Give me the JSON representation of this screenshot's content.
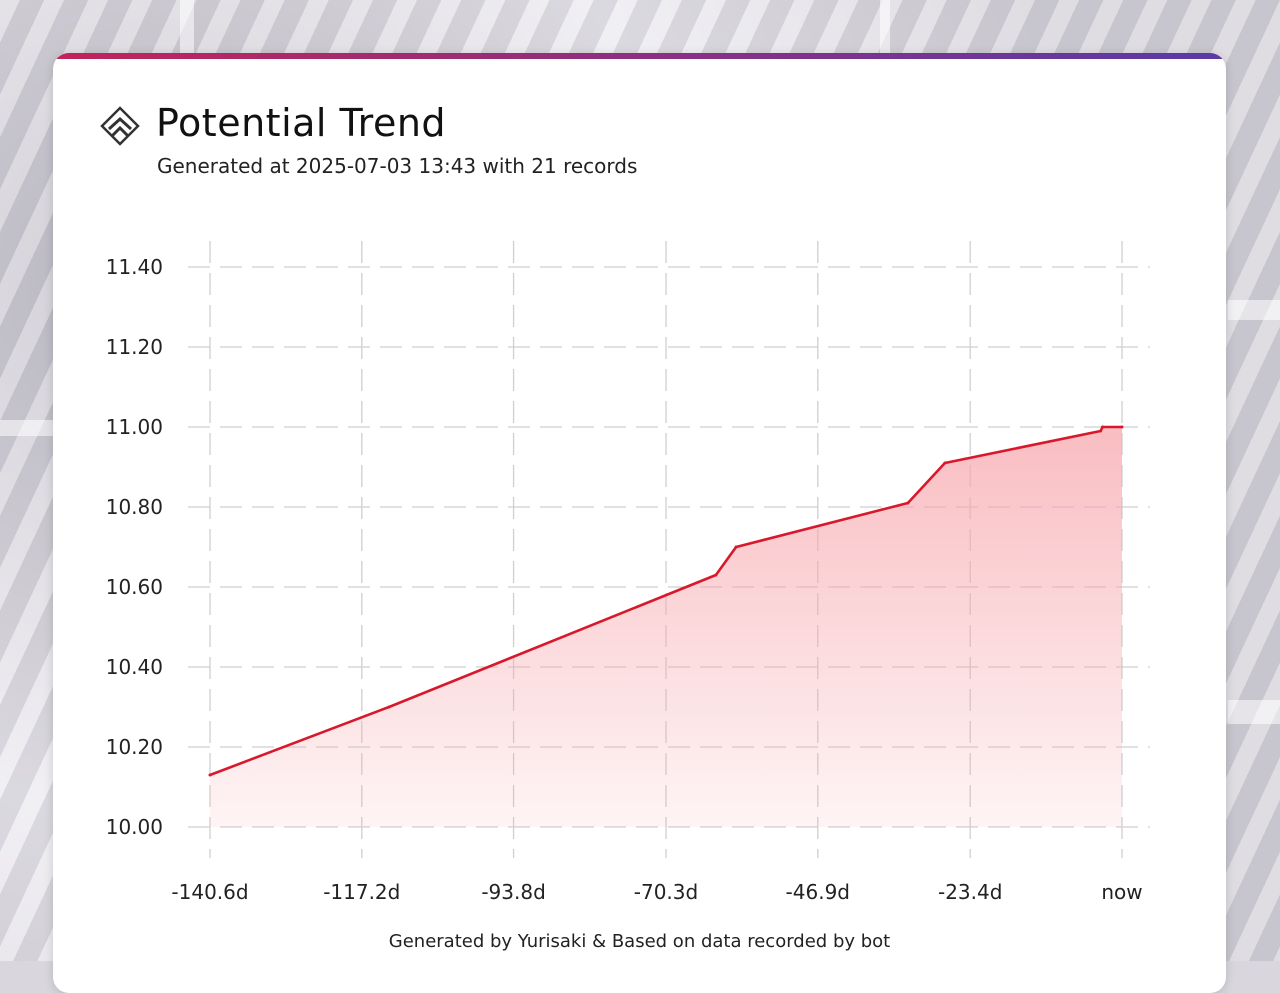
{
  "header": {
    "icon": "chevrons-up-icon",
    "title": "Potential Trend",
    "subtitle": "Generated at 2025-07-03 13:43 with 21 records"
  },
  "footer": {
    "text": "Generated by Yurisaki & Based on data recorded by bot"
  },
  "colors": {
    "accent_start": "#c0245a",
    "accent_end": "#5a3aa8",
    "line": "#d8192b",
    "fill": "#f7a7ad"
  },
  "chart_data": {
    "type": "area",
    "title": "",
    "xlabel": "",
    "ylabel": "",
    "grid": true,
    "legend": "none",
    "xlim": [
      -140.6,
      0
    ],
    "ylim": [
      10.0,
      11.4
    ],
    "xtick_values": [
      -140.6,
      -117.2,
      -93.8,
      -70.3,
      -46.9,
      -23.4,
      0
    ],
    "xtick_labels": [
      "-140.6d",
      "-117.2d",
      "-93.8d",
      "-70.3d",
      "-46.9d",
      "-23.4d",
      "now"
    ],
    "ytick_values": [
      10.0,
      10.2,
      10.4,
      10.6,
      10.8,
      11.0,
      11.2,
      11.4
    ],
    "ytick_labels": [
      "10.00",
      "10.20",
      "10.40",
      "10.60",
      "10.80",
      "11.00",
      "11.20",
      "11.40"
    ],
    "series": [
      {
        "x": [
          -140.6,
          -113.0,
          -62.6,
          -59.5,
          -33.0,
          -27.3,
          -3.3,
          -3.0,
          0
        ],
        "y": [
          10.13,
          10.3,
          10.63,
          10.7,
          10.81,
          10.91,
          10.99,
          11.0,
          11.0
        ]
      }
    ]
  }
}
